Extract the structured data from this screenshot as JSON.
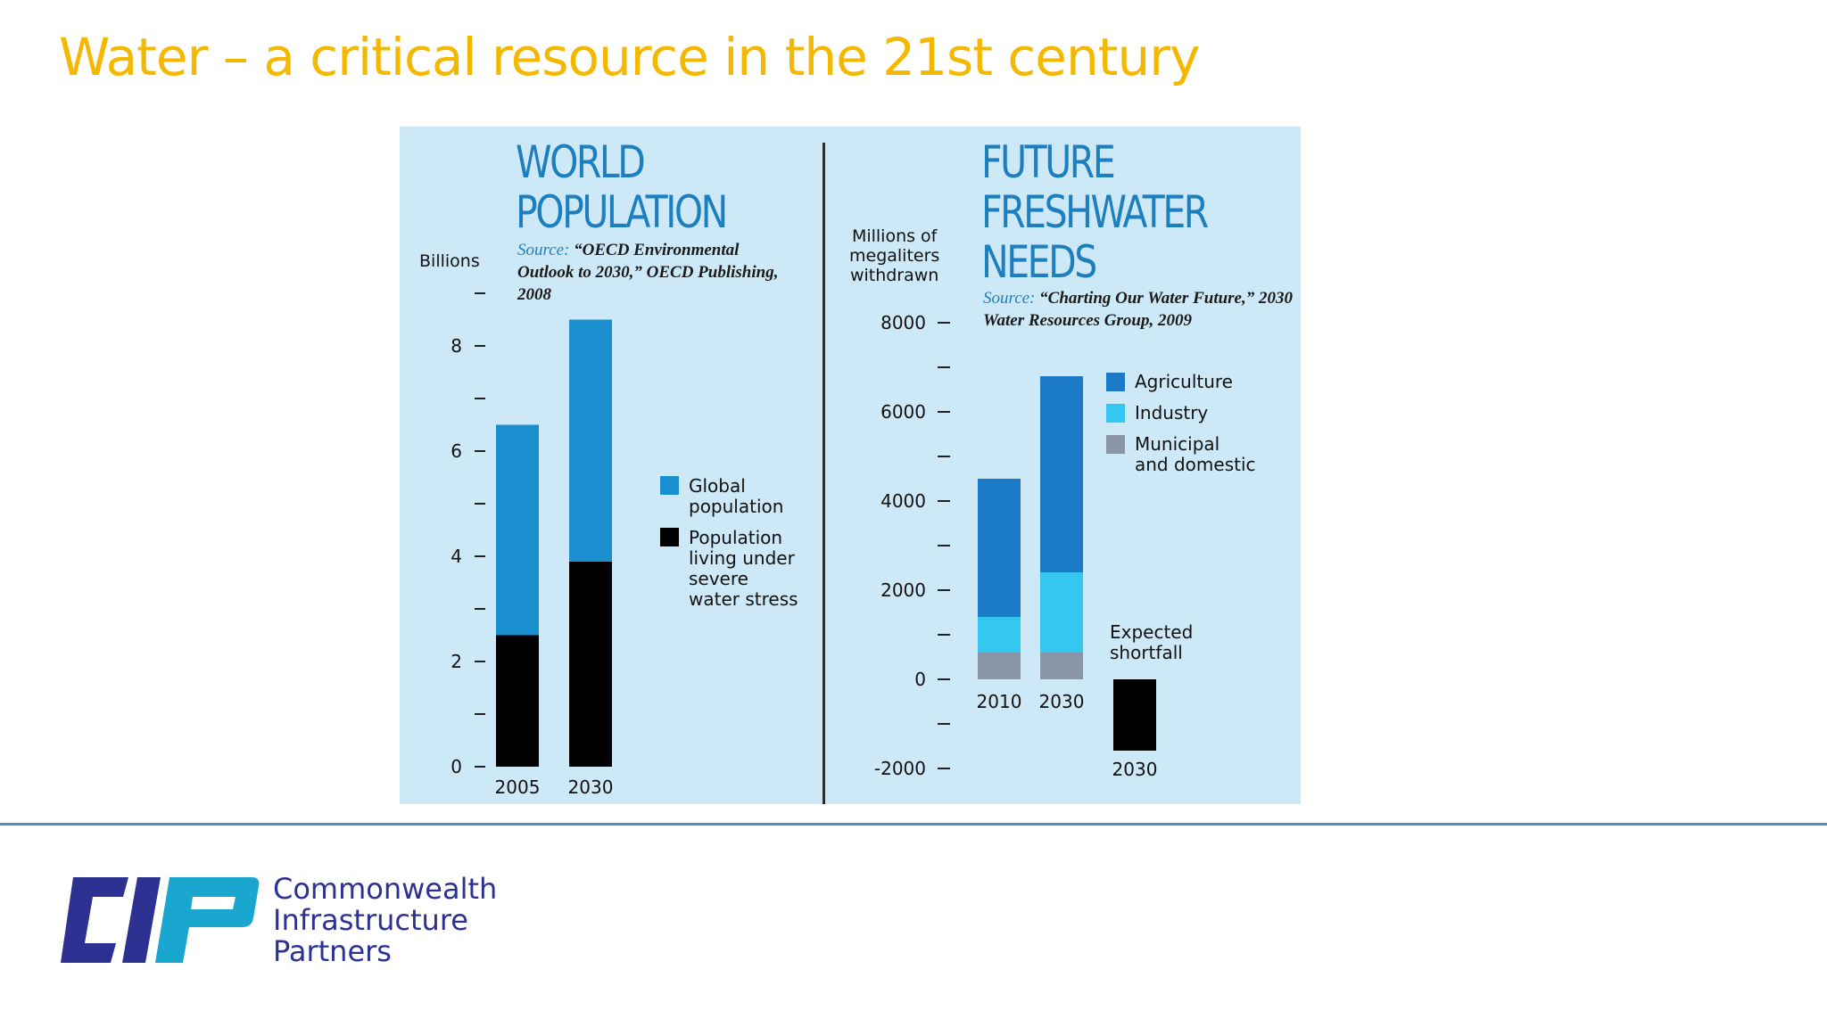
{
  "slide": {
    "title": "Water – a critical resource in the 21st century"
  },
  "colors": {
    "title": "#f5b800",
    "panel_background": "#cde9f7",
    "global_population": "#1b8fd0",
    "water_stress": "#000000",
    "agriculture": "#1b7bc6",
    "industry": "#34c7ef",
    "municipal": "#8a95a8",
    "shortfall": "#000000",
    "rule": "#4d8fc2",
    "logo_navy": "#2d3192",
    "logo_cyan": "#19a6cf"
  },
  "panels": {
    "population": {
      "headline": "WORLD\nPOPULATION",
      "source_label": "Source:",
      "source_text": "“OECD Environmental Outlook to 2030,” OECD Publishing, 2008",
      "unit": "Billions"
    },
    "freshwater": {
      "headline": "FUTURE\nFRESHWATER\nNEEDS",
      "source_label": "Source:",
      "source_text": "“Charting Our Water Future,” 2030 Water Resources Group, 2009",
      "unit": "Millions of\nmegaliters\nwithdrawn"
    }
  },
  "chart_data": [
    {
      "type": "bar",
      "stacked": true,
      "title": "WORLD POPULATION",
      "ylabel": "Billions",
      "ylim": [
        0,
        9
      ],
      "yticks": [
        0,
        2,
        4,
        6,
        8
      ],
      "categories": [
        "2005",
        "2030"
      ],
      "series": [
        {
          "name": "Population living under severe water stress",
          "values": [
            2.5,
            3.9
          ]
        },
        {
          "name": "Global population",
          "values": [
            4.0,
            4.6
          ]
        }
      ],
      "legend": [
        "Global population",
        "Population living under severe water stress"
      ],
      "legend_position": "right"
    },
    {
      "type": "bar",
      "stacked": true,
      "title": "FUTURE FRESHWATER NEEDS",
      "ylabel": "Millions of megaliters withdrawn",
      "ylim": [
        -2000,
        8000
      ],
      "yticks": [
        -2000,
        0,
        2000,
        4000,
        6000,
        8000
      ],
      "categories": [
        "2010",
        "2030"
      ],
      "series": [
        {
          "name": "Municipal and domestic",
          "values": [
            600,
            600
          ]
        },
        {
          "name": "Industry",
          "values": [
            800,
            1800
          ]
        },
        {
          "name": "Agriculture",
          "values": [
            3100,
            4400
          ]
        }
      ],
      "shortfall": {
        "label": "Expected shortfall",
        "category": "2030",
        "value": -1600
      },
      "legend": [
        "Agriculture",
        "Industry",
        "Municipal and domestic"
      ],
      "legend_position": "right"
    }
  ],
  "logo": {
    "letters": "CIP",
    "company_name": "Commonwealth\nInfrastructure\nPartners"
  }
}
